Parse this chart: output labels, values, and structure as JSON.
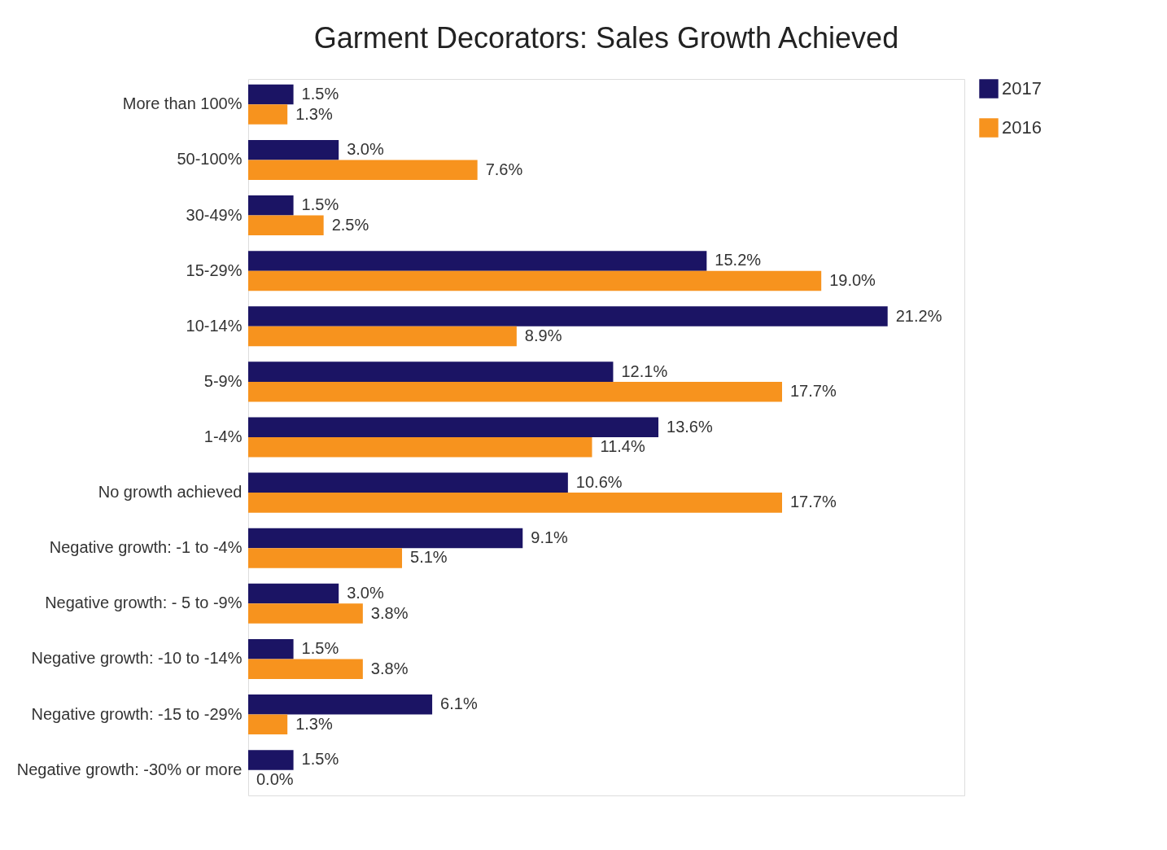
{
  "chart_data": {
    "type": "bar",
    "orientation": "horizontal",
    "title": "Garment Decorators: Sales Growth Achieved",
    "categories": [
      "More than 100%",
      "50-100%",
      "30-49%",
      "15-29%",
      "10-14%",
      "5-9%",
      "1-4%",
      "No growth achieved",
      "Negative growth: -1 to -4%",
      "Negative growth: - 5 to -9%",
      "Negative growth: -10 to -14%",
      "Negative growth: -15 to -29%",
      "Negative growth: -30% or more"
    ],
    "series": [
      {
        "name": "2017",
        "color": "#1b1464",
        "values": [
          1.5,
          3.0,
          1.5,
          15.2,
          21.2,
          12.1,
          13.6,
          10.6,
          9.1,
          3.0,
          1.5,
          6.1,
          1.5
        ],
        "value_labels": [
          "1.5%",
          "3.0%",
          "1.5%",
          "15.2%",
          "21.2%",
          "12.1%",
          "13.6%",
          "10.6%",
          "9.1%",
          "3.0%",
          "1.5%",
          "6.1%",
          "1.5%"
        ]
      },
      {
        "name": "2016",
        "color": "#f7931e",
        "values": [
          1.3,
          7.6,
          2.5,
          19.0,
          8.9,
          17.7,
          11.4,
          17.7,
          5.1,
          3.8,
          3.8,
          1.3,
          0.0
        ],
        "value_labels": [
          "1.3%",
          "7.6%",
          "2.5%",
          "19.0%",
          "8.9%",
          "17.7%",
          "11.4%",
          "17.7%",
          "5.1%",
          "3.8%",
          "3.8%",
          "1.3%",
          "0.0%"
        ]
      }
    ],
    "legend": "right",
    "grid": false
  }
}
